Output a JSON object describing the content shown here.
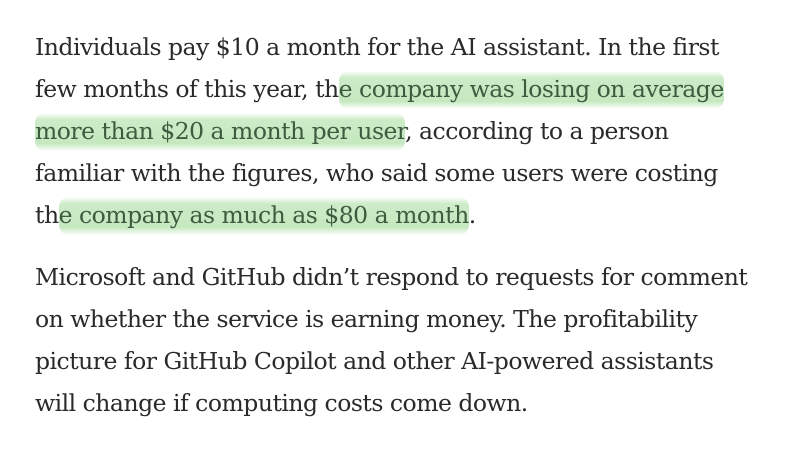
{
  "article": {
    "paragraph_1": {
      "line_1": "Individuals pay $10 a month for the AI assistant. In the first",
      "line_2_pre": "few months of this year, th",
      "line_2_hl": "e company was losing on average",
      "line_3_hl": "more than $20 a month per user",
      "line_3_post": ", according to a person",
      "line_4": "familiar with the figures, who said some users were costing",
      "line_5_pre": "th",
      "line_5_hl": "e company as much as $80 a month",
      "line_5_post": "."
    },
    "paragraph_2": {
      "line_1": "Microsoft and GitHub didn’t respond to requests for comment",
      "line_2": "on whether the service is earning money. The profitability",
      "line_3": "picture for GitHub Copilot and other AI-powered assistants",
      "line_4": "will change if computing costs come down."
    }
  },
  "highlight_color": "#c4e8be",
  "highlight_text_color": "#3d5c3f"
}
